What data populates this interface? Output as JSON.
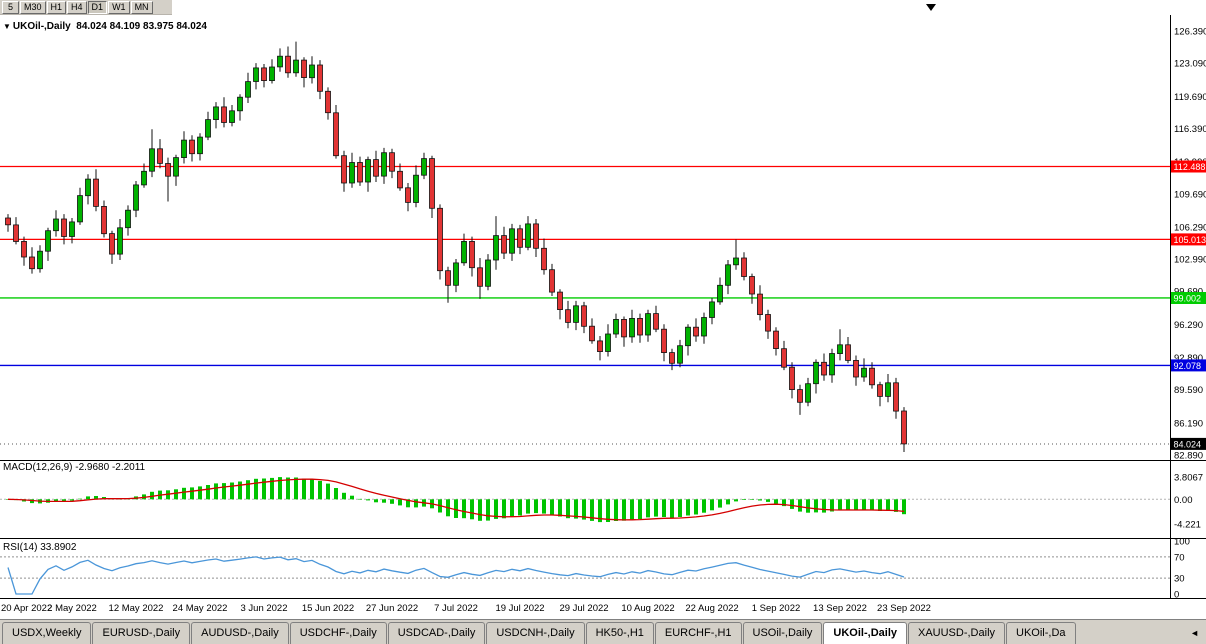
{
  "toolbar": {
    "timeframes": [
      {
        "label": "5",
        "active": false
      },
      {
        "label": "M30",
        "active": false
      },
      {
        "label": "H1",
        "active": false
      },
      {
        "label": "H4",
        "active": false
      },
      {
        "label": "D1",
        "active": true
      },
      {
        "label": "W1",
        "active": false
      },
      {
        "label": "MN",
        "active": false
      }
    ],
    "shift_marker": "▼"
  },
  "chart": {
    "title_symbol": "UKOil-,Daily",
    "title_ohlc": "84.024 84.109 83.975 84.024",
    "macd_label": "MACD(12,26,9) -2.9680 -2.2011",
    "rsi_label": "RSI(14) 33.8902",
    "date_labels": [
      {
        "text": "20 Apr 2022",
        "index": 0
      },
      {
        "text": "2 May 2022",
        "index": 8
      },
      {
        "text": "12 May 2022",
        "index": 16
      },
      {
        "text": "24 May 2022",
        "index": 24
      },
      {
        "text": "3 Jun 2022",
        "index": 32
      },
      {
        "text": "15 Jun 2022",
        "index": 40
      },
      {
        "text": "27 Jun 2022",
        "index": 48
      },
      {
        "text": "7 Jul 2022",
        "index": 56
      },
      {
        "text": "19 Jul 2022",
        "index": 64
      },
      {
        "text": "29 Jul 2022",
        "index": 72
      },
      {
        "text": "10 Aug 2022",
        "index": 80
      },
      {
        "text": "22 Aug 2022",
        "index": 88
      },
      {
        "text": "1 Sep 2022",
        "index": 96
      },
      {
        "text": "13 Sep 2022",
        "index": 104
      },
      {
        "text": "23 Sep 2022",
        "index": 112
      }
    ]
  },
  "chart_data": {
    "type": "candlestick",
    "symbol": "UKOil-",
    "timeframe": "Daily",
    "ohlc_display": {
      "open": "84.024",
      "high": "84.109",
      "low": "83.975",
      "close": "84.024"
    },
    "price_axis_labels": [
      "126.390",
      "123.090",
      "119.690",
      "116.390",
      "112.990",
      "109.690",
      "106.290",
      "102.990",
      "99.690",
      "96.290",
      "92.890",
      "89.590",
      "86.190",
      "82.890"
    ],
    "horizontal_levels": [
      {
        "price": 112.488,
        "label": "112.488",
        "color": "#FF0000"
      },
      {
        "price": 105.013,
        "label": "105.013",
        "color": "#FF0000"
      },
      {
        "price": 99.002,
        "label": "99.002",
        "color": "#00CC00"
      },
      {
        "price": 92.078,
        "label": "92.078",
        "color": "#0000E0"
      }
    ],
    "current_price": {
      "price": 84.024,
      "label": "84.024",
      "color": "#000000"
    },
    "candles": [
      [
        107.2,
        107.6,
        105.8,
        106.5
      ],
      [
        106.5,
        107.3,
        104.5,
        104.8
      ],
      [
        104.8,
        105.3,
        102.3,
        103.2
      ],
      [
        103.2,
        104.2,
        101.5,
        102.0
      ],
      [
        102.0,
        104.4,
        101.6,
        103.8
      ],
      [
        103.8,
        106.2,
        102.8,
        105.9
      ],
      [
        105.9,
        108.0,
        105.3,
        107.1
      ],
      [
        107.1,
        107.6,
        104.5,
        105.3
      ],
      [
        105.3,
        107.2,
        104.6,
        106.8
      ],
      [
        106.8,
        110.3,
        106.5,
        109.5
      ],
      [
        109.5,
        111.7,
        108.6,
        111.2
      ],
      [
        111.2,
        112.2,
        107.9,
        108.4
      ],
      [
        108.4,
        109.0,
        105.2,
        105.6
      ],
      [
        105.6,
        105.9,
        102.5,
        103.5
      ],
      [
        103.5,
        107.1,
        102.9,
        106.2
      ],
      [
        106.2,
        108.5,
        105.4,
        108.0
      ],
      [
        108.0,
        111.0,
        107.3,
        110.6
      ],
      [
        110.6,
        112.8,
        110.3,
        112.0
      ],
      [
        112.0,
        116.3,
        111.4,
        114.3
      ],
      [
        114.3,
        115.3,
        112.3,
        112.8
      ],
      [
        112.8,
        113.4,
        108.9,
        111.5
      ],
      [
        111.5,
        113.7,
        110.5,
        113.4
      ],
      [
        113.4,
        116.1,
        112.8,
        115.2
      ],
      [
        115.2,
        115.7,
        113.0,
        113.8
      ],
      [
        113.8,
        115.9,
        113.1,
        115.5
      ],
      [
        115.5,
        118.1,
        115.2,
        117.3
      ],
      [
        117.3,
        119.1,
        116.4,
        118.6
      ],
      [
        118.6,
        119.6,
        116.5,
        117.0
      ],
      [
        117.0,
        118.8,
        116.6,
        118.2
      ],
      [
        118.2,
        119.9,
        117.2,
        119.6
      ],
      [
        119.6,
        122.1,
        119.0,
        121.2
      ],
      [
        121.2,
        123.1,
        120.4,
        122.6
      ],
      [
        122.6,
        123.0,
        120.6,
        121.3
      ],
      [
        121.3,
        123.5,
        121.0,
        122.7
      ],
      [
        122.7,
        124.6,
        122.2,
        123.8
      ],
      [
        123.8,
        124.8,
        121.6,
        122.1
      ],
      [
        122.1,
        125.3,
        121.7,
        123.4
      ],
      [
        123.4,
        123.7,
        120.6,
        121.6
      ],
      [
        121.6,
        123.8,
        121.0,
        122.9
      ],
      [
        122.9,
        123.4,
        119.4,
        120.2
      ],
      [
        120.2,
        120.6,
        117.3,
        118.0
      ],
      [
        118.0,
        118.8,
        113.3,
        113.6
      ],
      [
        113.6,
        114.1,
        109.9,
        110.8
      ],
      [
        110.8,
        113.9,
        110.3,
        112.9
      ],
      [
        112.9,
        113.5,
        110.5,
        110.9
      ],
      [
        110.9,
        113.5,
        109.9,
        113.2
      ],
      [
        113.2,
        114.1,
        110.9,
        111.5
      ],
      [
        111.5,
        114.4,
        110.7,
        113.9
      ],
      [
        113.9,
        114.3,
        111.3,
        112.0
      ],
      [
        112.0,
        112.8,
        110.0,
        110.3
      ],
      [
        110.3,
        110.8,
        107.9,
        108.8
      ],
      [
        108.8,
        112.6,
        108.3,
        111.6
      ],
      [
        111.6,
        113.9,
        111.2,
        113.3
      ],
      [
        113.3,
        113.6,
        107.2,
        108.2
      ],
      [
        108.2,
        108.6,
        100.9,
        101.8
      ],
      [
        101.8,
        102.2,
        98.5,
        100.3
      ],
      [
        100.3,
        103.0,
        99.6,
        102.6
      ],
      [
        102.6,
        105.6,
        102.3,
        104.8
      ],
      [
        104.8,
        105.3,
        101.2,
        102.1
      ],
      [
        102.1,
        103.1,
        98.9,
        100.2
      ],
      [
        100.2,
        103.5,
        99.8,
        102.9
      ],
      [
        102.9,
        107.4,
        101.9,
        105.4
      ],
      [
        105.4,
        106.3,
        103.0,
        103.6
      ],
      [
        103.6,
        106.6,
        102.8,
        106.1
      ],
      [
        106.1,
        106.5,
        103.5,
        104.2
      ],
      [
        104.2,
        107.4,
        103.9,
        106.6
      ],
      [
        106.6,
        107.1,
        103.2,
        104.1
      ],
      [
        104.1,
        105.1,
        101.4,
        101.9
      ],
      [
        101.9,
        102.5,
        99.2,
        99.6
      ],
      [
        99.6,
        99.9,
        96.8,
        97.8
      ],
      [
        97.8,
        98.7,
        95.9,
        96.5
      ],
      [
        96.5,
        98.7,
        95.7,
        98.2
      ],
      [
        98.2,
        98.6,
        95.4,
        96.1
      ],
      [
        96.1,
        96.9,
        94.3,
        94.6
      ],
      [
        94.6,
        95.1,
        92.6,
        93.5
      ],
      [
        93.5,
        96.3,
        93.0,
        95.3
      ],
      [
        95.3,
        97.4,
        94.9,
        96.8
      ],
      [
        96.8,
        97.1,
        94.0,
        95.0
      ],
      [
        95.0,
        97.8,
        94.4,
        96.9
      ],
      [
        96.9,
        97.4,
        94.4,
        95.2
      ],
      [
        95.2,
        97.8,
        94.5,
        97.4
      ],
      [
        97.4,
        98.2,
        95.5,
        95.8
      ],
      [
        95.8,
        96.3,
        92.5,
        93.4
      ],
      [
        93.4,
        93.8,
        91.6,
        92.3
      ],
      [
        92.3,
        94.7,
        91.9,
        94.1
      ],
      [
        94.1,
        96.3,
        93.1,
        96.0
      ],
      [
        96.0,
        96.9,
        94.5,
        95.1
      ],
      [
        95.1,
        97.5,
        94.3,
        97.0
      ],
      [
        97.0,
        99.0,
        96.3,
        98.6
      ],
      [
        98.6,
        101.1,
        98.3,
        100.3
      ],
      [
        100.3,
        102.9,
        99.4,
        102.4
      ],
      [
        102.4,
        105.0,
        101.9,
        103.1
      ],
      [
        103.1,
        103.7,
        100.8,
        101.2
      ],
      [
        101.2,
        101.5,
        98.4,
        99.4
      ],
      [
        99.4,
        100.3,
        96.7,
        97.3
      ],
      [
        97.3,
        97.8,
        94.8,
        95.6
      ],
      [
        95.6,
        96.0,
        93.1,
        93.8
      ],
      [
        93.8,
        94.6,
        91.6,
        91.9
      ],
      [
        91.9,
        92.4,
        88.7,
        89.6
      ],
      [
        89.6,
        90.1,
        87.0,
        88.3
      ],
      [
        88.3,
        90.8,
        87.9,
        90.2
      ],
      [
        90.2,
        92.7,
        89.2,
        92.4
      ],
      [
        92.4,
        93.3,
        90.5,
        91.1
      ],
      [
        91.1,
        93.8,
        90.3,
        93.3
      ],
      [
        93.3,
        95.8,
        92.6,
        94.2
      ],
      [
        94.2,
        95.0,
        92.3,
        92.6
      ],
      [
        92.6,
        93.1,
        90.0,
        90.9
      ],
      [
        90.9,
        92.8,
        90.4,
        91.8
      ],
      [
        91.8,
        92.4,
        89.7,
        90.1
      ],
      [
        90.1,
        90.4,
        87.9,
        88.9
      ],
      [
        88.9,
        91.2,
        88.3,
        90.3
      ],
      [
        90.3,
        90.8,
        86.6,
        87.4
      ],
      [
        87.4,
        87.8,
        83.2,
        84.02
      ]
    ],
    "indicators": [
      {
        "type": "MACD",
        "params": [
          12,
          26,
          9
        ],
        "main_value": -2.968,
        "signal_value": -2.2011,
        "axis_labels": [
          "3.8067",
          "0.00",
          "-4.221"
        ]
      },
      {
        "type": "RSI",
        "params": [
          14
        ],
        "value": 33.8902,
        "axis_labels": [
          "100",
          "70",
          "30",
          "0"
        ],
        "level_lines": [
          70,
          30
        ]
      }
    ]
  },
  "tabs": {
    "items": [
      {
        "label": "USDX,Weekly",
        "active": false
      },
      {
        "label": "EURUSD-,Daily",
        "active": false
      },
      {
        "label": "AUDUSD-,Daily",
        "active": false
      },
      {
        "label": "USDCHF-,Daily",
        "active": false
      },
      {
        "label": "USDCAD-,Daily",
        "active": false
      },
      {
        "label": "USDCNH-,Daily",
        "active": false
      },
      {
        "label": "HK50-,H1",
        "active": false
      },
      {
        "label": "EURCHF-,H1",
        "active": false
      },
      {
        "label": "USOil-,Daily",
        "active": false
      },
      {
        "label": "UKOil-,Daily",
        "active": true
      },
      {
        "label": "XAUUSD-,Daily",
        "active": false
      },
      {
        "label": "UKOil-,Da",
        "active": false
      }
    ],
    "scroll_left_icon": "◄"
  },
  "colors": {
    "bull": "#00B200",
    "bear": "#E23434",
    "wick": "#111111",
    "macd_histogram": "#00C400",
    "macd_signal": "#D40000",
    "rsi_line": "#4A96D9",
    "panel_border": "#000000",
    "toolbar_bg": "#D4D0C8"
  }
}
